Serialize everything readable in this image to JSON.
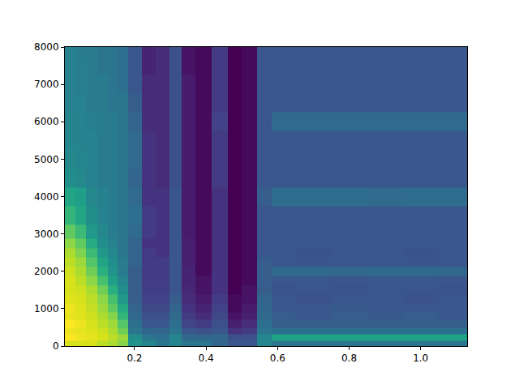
{
  "chart_data": {
    "type": "heatmap",
    "color": "viridis",
    "x": [
      0.02,
      0.05,
      0.08,
      0.11,
      0.14,
      0.165,
      0.2,
      0.24,
      0.28,
      0.315,
      0.35,
      0.39,
      0.44,
      0.48,
      0.52,
      0.565,
      0.6,
      0.7,
      0.8,
      0.9,
      1.0,
      1.1
    ],
    "y": [
      75,
      225,
      400,
      600,
      800,
      1000,
      1250,
      1500,
      1750,
      2000,
      2250,
      2500,
      2750,
      3000,
      3500,
      4000,
      4500,
      5000,
      5500,
      6000,
      6500,
      7000,
      7500,
      7900
    ],
    "z": [
      [
        95,
        95,
        95,
        92,
        90,
        85,
        60,
        55,
        50,
        55,
        50,
        50,
        45,
        40,
        40,
        55,
        50,
        50,
        50,
        50,
        50,
        50
      ],
      [
        100,
        98,
        97,
        95,
        92,
        88,
        58,
        50,
        48,
        55,
        45,
        45,
        45,
        38,
        38,
        55,
        65,
        65,
        65,
        65,
        65,
        65
      ],
      [
        98,
        97,
        96,
        94,
        90,
        82,
        50,
        45,
        45,
        50,
        40,
        38,
        40,
        30,
        32,
        50,
        48,
        48,
        48,
        48,
        48,
        48
      ],
      [
        100,
        98,
        95,
        92,
        88,
        78,
        48,
        40,
        40,
        48,
        35,
        32,
        38,
        25,
        28,
        48,
        42,
        42,
        42,
        42,
        42,
        42
      ],
      [
        97,
        96,
        94,
        90,
        85,
        72,
        45,
        38,
        38,
        46,
        32,
        28,
        36,
        22,
        25,
        46,
        42,
        40,
        42,
        41,
        42,
        40
      ],
      [
        98,
        96,
        93,
        88,
        80,
        68,
        44,
        36,
        36,
        44,
        30,
        26,
        34,
        20,
        24,
        45,
        40,
        40,
        41,
        40,
        40,
        40
      ],
      [
        96,
        95,
        92,
        86,
        76,
        62,
        42,
        34,
        34,
        42,
        28,
        24,
        32,
        20,
        22,
        44,
        40,
        39,
        40,
        40,
        39,
        40
      ],
      [
        95,
        94,
        90,
        82,
        70,
        58,
        42,
        33,
        33,
        40,
        27,
        22,
        30,
        18,
        22,
        42,
        39,
        40,
        39,
        40,
        40,
        39
      ],
      [
        95,
        92,
        86,
        76,
        64,
        55,
        42,
        32,
        32,
        40,
        26,
        22,
        30,
        18,
        20,
        42,
        40,
        40,
        40,
        40,
        40,
        40
      ],
      [
        94,
        90,
        82,
        70,
        60,
        52,
        42,
        32,
        32,
        40,
        26,
        20,
        30,
        18,
        20,
        42,
        46,
        46,
        45,
        46,
        46,
        45
      ],
      [
        92,
        88,
        78,
        66,
        58,
        52,
        44,
        32,
        32,
        40,
        25,
        20,
        30,
        18,
        20,
        42,
        40,
        40,
        40,
        40,
        40,
        40
      ],
      [
        90,
        84,
        74,
        62,
        56,
        50,
        44,
        32,
        30,
        40,
        25,
        20,
        30,
        18,
        20,
        40,
        40,
        39,
        40,
        40,
        39,
        40
      ],
      [
        86,
        80,
        68,
        58,
        54,
        50,
        44,
        30,
        30,
        40,
        25,
        20,
        30,
        18,
        20,
        40,
        40,
        40,
        40,
        40,
        40,
        40
      ],
      [
        80,
        74,
        62,
        56,
        52,
        50,
        46,
        32,
        30,
        40,
        24,
        20,
        30,
        18,
        20,
        40,
        40,
        40,
        40,
        40,
        40,
        40
      ],
      [
        72,
        66,
        58,
        54,
        52,
        50,
        48,
        32,
        30,
        40,
        24,
        20,
        30,
        18,
        20,
        40,
        40,
        40,
        40,
        40,
        40,
        40
      ],
      [
        66,
        64,
        56,
        54,
        52,
        50,
        46,
        30,
        30,
        40,
        24,
        20,
        30,
        18,
        20,
        42,
        47,
        47,
        47,
        46,
        47,
        47
      ],
      [
        58,
        56,
        54,
        52,
        52,
        50,
        44,
        30,
        28,
        38,
        24,
        20,
        32,
        18,
        20,
        40,
        40,
        40,
        40,
        40,
        40,
        40
      ],
      [
        56,
        55,
        54,
        52,
        52,
        50,
        46,
        30,
        28,
        38,
        24,
        20,
        32,
        18,
        20,
        40,
        40,
        40,
        40,
        40,
        40,
        40
      ],
      [
        55,
        54,
        54,
        52,
        52,
        50,
        46,
        30,
        28,
        38,
        24,
        20,
        32,
        18,
        20,
        40,
        40,
        40,
        40,
        40,
        40,
        40
      ],
      [
        55,
        54,
        53,
        52,
        52,
        50,
        44,
        28,
        28,
        38,
        24,
        20,
        34,
        18,
        20,
        40,
        46,
        46,
        46,
        46,
        46,
        46
      ],
      [
        54,
        54,
        52,
        52,
        50,
        50,
        42,
        28,
        28,
        38,
        24,
        20,
        32,
        18,
        20,
        40,
        40,
        40,
        40,
        40,
        40,
        40
      ],
      [
        54,
        53,
        52,
        52,
        50,
        48,
        40,
        28,
        28,
        38,
        24,
        20,
        32,
        18,
        20,
        40,
        40,
        40,
        40,
        40,
        40,
        40
      ],
      [
        54,
        53,
        52,
        50,
        50,
        48,
        40,
        26,
        28,
        38,
        22,
        20,
        32,
        18,
        20,
        40,
        40,
        40,
        40,
        40,
        40,
        40
      ],
      [
        54,
        52,
        52,
        50,
        50,
        48,
        40,
        26,
        28,
        38,
        22,
        20,
        32,
        18,
        20,
        40,
        40,
        40,
        40,
        40,
        40,
        40
      ]
    ],
    "xlim": [
      0.005,
      1.13
    ],
    "ylim": [
      0,
      8000
    ],
    "xticks": [
      0.2,
      0.4,
      0.6,
      0.8,
      {
        "value": 1,
        "label": "1.0"
      }
    ],
    "yticks": [
      0,
      1000,
      2000,
      3000,
      4000,
      5000,
      6000,
      7000,
      8000
    ]
  }
}
